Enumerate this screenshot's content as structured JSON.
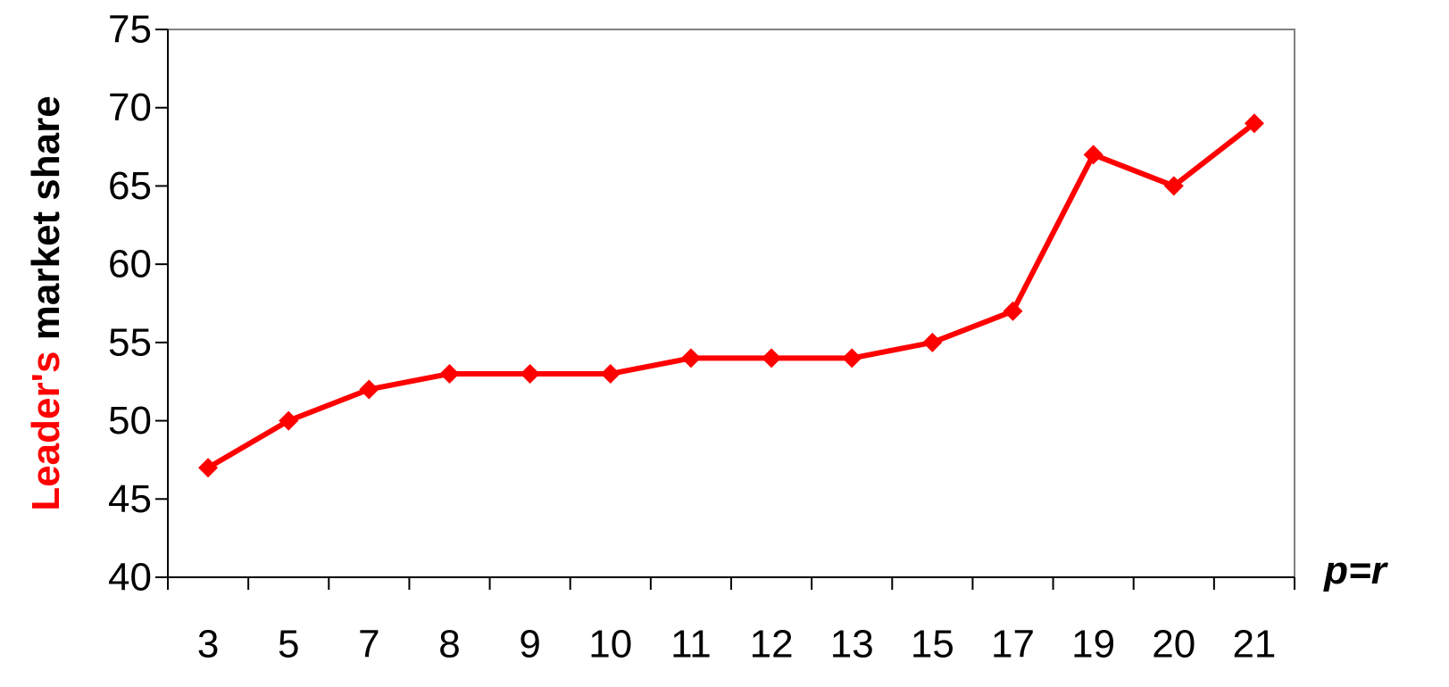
{
  "chart_data": {
    "type": "line",
    "categories": [
      "3",
      "5",
      "7",
      "8",
      "9",
      "10",
      "11",
      "12",
      "13",
      "15",
      "17",
      "19",
      "20",
      "21"
    ],
    "series": [
      {
        "values": [
          47,
          50,
          52,
          53,
          53,
          53,
          54,
          54,
          54,
          55,
          57,
          67,
          65,
          69
        ],
        "color": "#ff0000",
        "marker": "diamond"
      }
    ],
    "ylim": [
      40,
      75
    ],
    "yticks": [
      "40",
      "45",
      "50",
      "55",
      "60",
      "65",
      "70",
      "75"
    ],
    "ylabel": {
      "highlight": "Leader's",
      "highlight_color": "#ff0000",
      "rest": " market share",
      "rest_color": "#000000"
    },
    "xlabel": "p=r",
    "grid": false,
    "legend": "none"
  }
}
